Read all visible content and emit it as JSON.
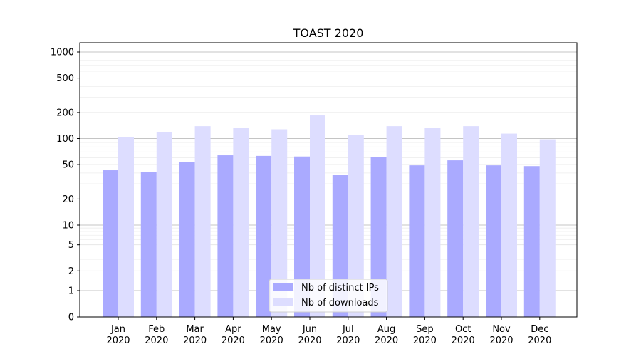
{
  "chart_data": {
    "type": "bar",
    "title": "TOAST 2020",
    "xlabel": "",
    "ylabel": "",
    "yscale": "symlog",
    "ylim": [
      0,
      1300
    ],
    "yticks": [
      0,
      1,
      2,
      5,
      10,
      20,
      50,
      100,
      200,
      500,
      1000
    ],
    "ytick_labels": [
      "0",
      "1",
      "2",
      "5",
      "10",
      "20",
      "50",
      "100",
      "200",
      "500",
      "1000"
    ],
    "categories": [
      "Jan\n2020",
      "Feb\n2020",
      "Mar\n2020",
      "Apr\n2020",
      "May\n2020",
      "Jun\n2020",
      "Jul\n2020",
      "Aug\n2020",
      "Sep\n2020",
      "Oct\n2020",
      "Nov\n2020",
      "Dec\n2020"
    ],
    "series": [
      {
        "name": "Nb of distinct IPs",
        "color": "#aaaaff",
        "values": [
          43,
          41,
          53,
          64,
          63,
          62,
          38,
          61,
          49,
          56,
          49,
          48
        ]
      },
      {
        "name": "Nb of downloads",
        "color": "#ddddff",
        "values": [
          104,
          119,
          139,
          133,
          128,
          185,
          110,
          139,
          133,
          139,
          114,
          98
        ]
      }
    ],
    "grid": true,
    "legend": "lower-center"
  }
}
